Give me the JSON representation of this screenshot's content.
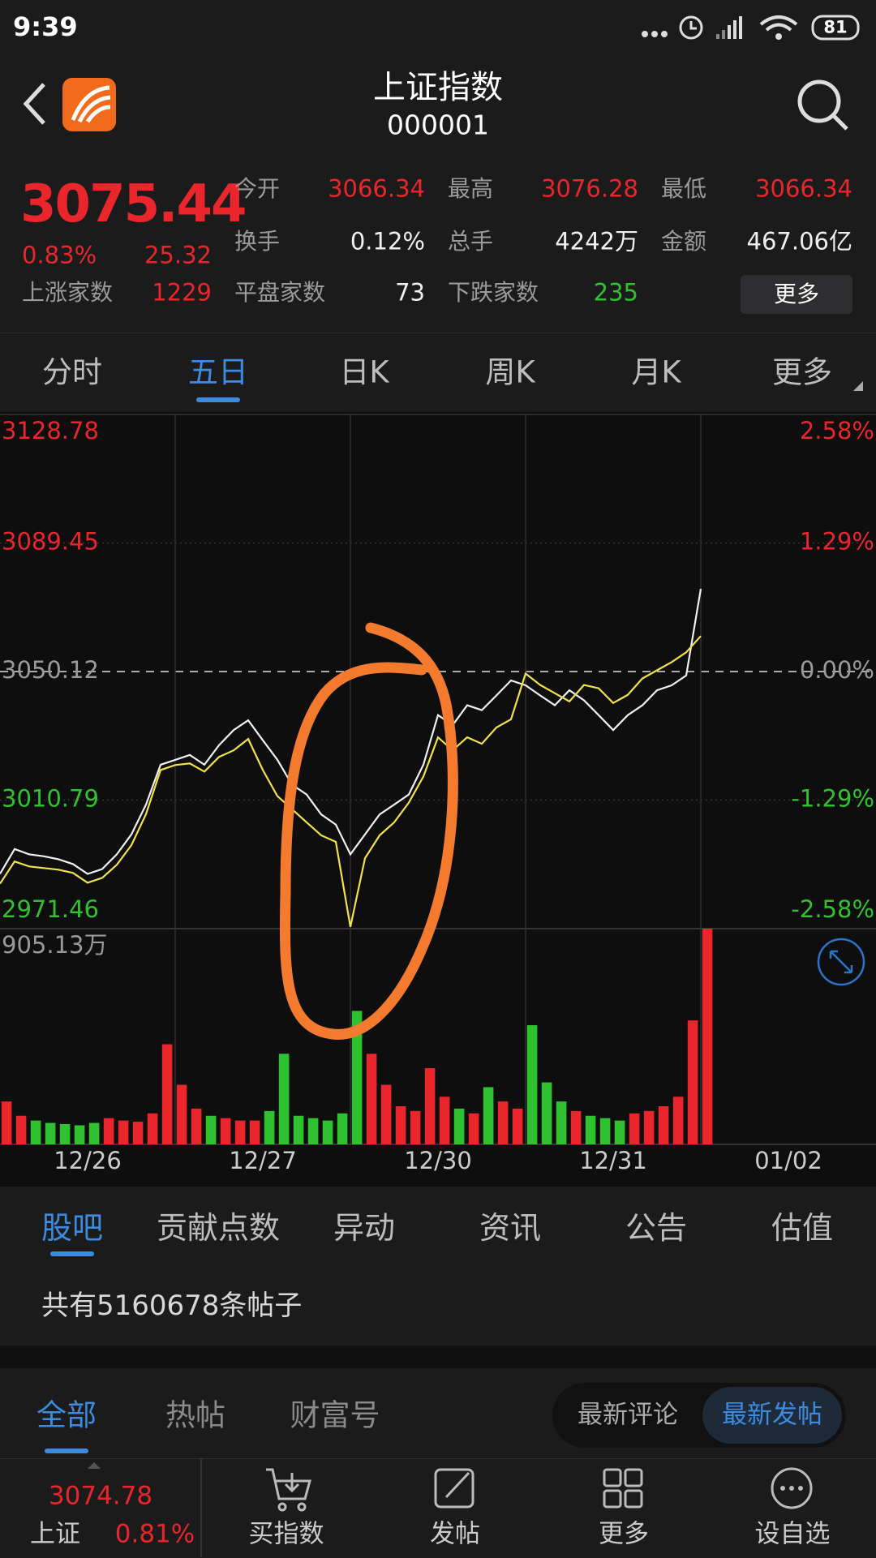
{
  "status_bar": {
    "time": "9:39",
    "battery": "81"
  },
  "header": {
    "title": "上证指数",
    "code": "000001"
  },
  "quote": {
    "price": "3075.44",
    "change_pct": "0.83%",
    "change": "25.32",
    "stats": [
      {
        "label": "今开",
        "value": "3066.34",
        "color": "#e8262b"
      },
      {
        "label": "最高",
        "value": "3076.28",
        "color": "#e8262b"
      },
      {
        "label": "最低",
        "value": "3066.34",
        "color": "#e8262b"
      },
      {
        "label": "换手",
        "value": "0.12%",
        "color": "#f0f0f0"
      },
      {
        "label": "总手",
        "value": "4242万",
        "color": "#f0f0f0"
      },
      {
        "label": "金额",
        "value": "467.06亿",
        "color": "#f0f0f0"
      },
      {
        "label": "上涨家数",
        "value": "1229",
        "color": "#e8262b"
      },
      {
        "label": "平盘家数",
        "value": "73",
        "color": "#f0f0f0"
      },
      {
        "label": "下跌家数",
        "value": "235",
        "color": "#2fc12f"
      }
    ],
    "more_button": "更多"
  },
  "period_tabs": {
    "items": [
      "分时",
      "五日",
      "日K",
      "周K",
      "月K",
      "更多"
    ],
    "active": 1
  },
  "chart_data": [
    {
      "type": "line",
      "ylim": [
        2971.46,
        3128.78
      ],
      "yticks": [
        2971.46,
        3010.79,
        3050.12,
        3089.45,
        3128.78
      ],
      "y2lim": [
        -2.58,
        2.58
      ],
      "y2ticks": [
        {
          "value": -2.58,
          "label": "-2.58%"
        },
        {
          "value": -1.29,
          "label": "-1.29%"
        },
        {
          "value": 0,
          "label": "0.00%"
        },
        {
          "value": 1.29,
          "label": "1.29%"
        },
        {
          "value": 2.58,
          "label": "2.58%"
        }
      ],
      "series": [
        {
          "color": "#f0f0f0",
          "values": [
            2988.2,
            2995.8,
            2994.2,
            2993.6,
            2992.7,
            2991.2,
            2988.2,
            2989.7,
            2994.2,
            3000.3,
            3009.4,
            3021.6,
            3023.1,
            3024.6,
            3021.6,
            3027.6,
            3032.2,
            3035.2,
            3029.1,
            3023.1,
            3015.5,
            3012.5,
            3006.4,
            3003.3,
            2994.2,
            3000.3,
            3006.4,
            3009.4,
            3012.5,
            3021.6,
            3036.8,
            3033.7,
            3039.8,
            3038.3,
            3042.8,
            3047.4,
            3045.9,
            3042.8,
            3039.8,
            3044.4,
            3041.3,
            3036.8,
            3032.2,
            3036.8,
            3039.8,
            3044.4,
            3045.9,
            3048.9,
            3075.4,
            null,
            null,
            null,
            null,
            null,
            null,
            null,
            null,
            null,
            null,
            null
          ]
        },
        {
          "color": "#f2e24a",
          "values": [
            2985.2,
            2992.0,
            2990.5,
            2990.0,
            2989.5,
            2988.5,
            2985.5,
            2987.0,
            2991.0,
            2997.0,
            3006.5,
            3020.0,
            3021.5,
            3022.0,
            3019.5,
            3024.0,
            3026.0,
            3029.5,
            3020.0,
            3012.0,
            3008.0,
            3004.0,
            3000.0,
            2998.0,
            2972.0,
            2993.0,
            3000.0,
            3004.0,
            3010.0,
            3018.0,
            3030.0,
            3026.0,
            3030.0,
            3028.0,
            3033.0,
            3035.5,
            3049.5,
            3046.0,
            3043.5,
            3041.0,
            3046.0,
            3045.0,
            3040.5,
            3043.0,
            3048.0,
            3050.5,
            3053.0,
            3056.0,
            3061.0,
            null,
            null,
            null,
            null,
            null,
            null,
            null,
            null,
            null,
            null,
            null
          ]
        }
      ]
    },
    {
      "type": "bar",
      "categories": [
        null,
        null,
        null,
        null,
        null,
        null,
        "12/26",
        null,
        null,
        null,
        null,
        null,
        null,
        null,
        null,
        null,
        null,
        null,
        "12/27",
        null,
        null,
        null,
        null,
        null,
        null,
        null,
        null,
        null,
        null,
        null,
        "12/30",
        null,
        null,
        null,
        null,
        null,
        null,
        null,
        null,
        null,
        null,
        null,
        "12/31",
        null,
        null,
        null,
        null,
        null,
        null,
        null,
        null,
        null,
        null,
        null,
        "01/02",
        null,
        null,
        null,
        null,
        null
      ],
      "values": [
        180,
        120,
        100,
        90,
        85,
        80,
        90,
        110,
        100,
        95,
        130,
        420,
        250,
        150,
        120,
        110,
        100,
        100,
        140,
        380,
        120,
        110,
        100,
        130,
        560,
        380,
        250,
        160,
        140,
        320,
        200,
        150,
        130,
        240,
        180,
        150,
        500,
        260,
        180,
        140,
        120,
        110,
        100,
        130,
        140,
        160,
        200,
        520,
        905.13,
        null,
        null,
        null,
        null,
        null,
        null,
        null,
        null,
        null,
        null,
        null
      ],
      "up_color": "#e8262b",
      "down_color": "#2fc12f",
      "ylim": [
        0,
        905.13
      ],
      "yticks": [
        {
          "value": 905.13,
          "label": "905.13万"
        }
      ]
    }
  ],
  "section_tabs": {
    "items": [
      "股吧",
      "贡献点数",
      "异动",
      "资讯",
      "公告",
      "估值"
    ],
    "active": 0
  },
  "post_count": "共有5160678条帖子",
  "post_filters": {
    "items": [
      "全部",
      "热帖",
      "财富号"
    ],
    "active": 0
  },
  "sort_toggle": {
    "items": [
      "最新评论",
      "最新发帖"
    ],
    "active": 1
  },
  "bottom_bar": {
    "index_price": "3074.78",
    "index_name": "上证",
    "index_pct": "0.81%",
    "actions": [
      "买指数",
      "发帖",
      "更多",
      "设自选"
    ]
  }
}
